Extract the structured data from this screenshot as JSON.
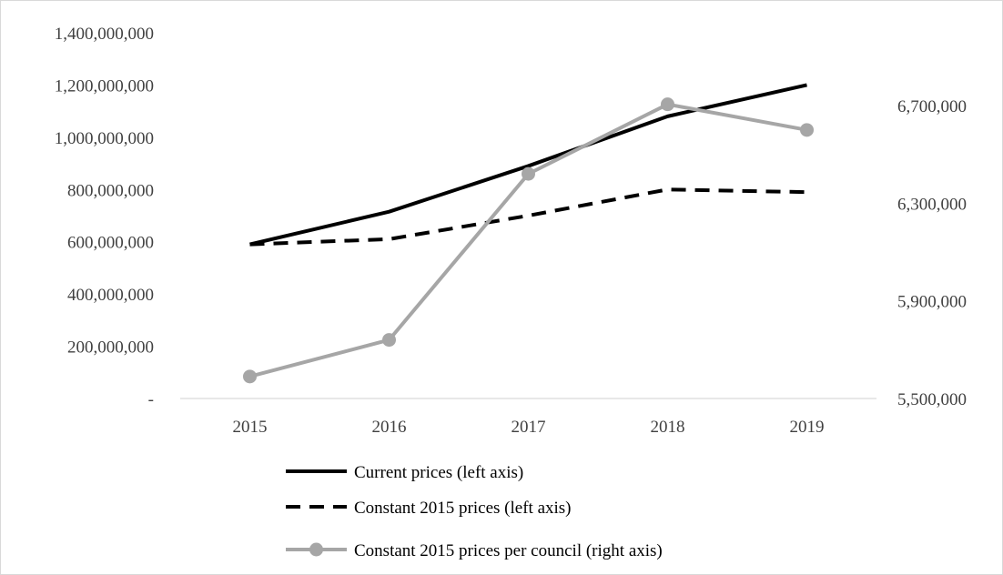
{
  "chart_data": {
    "type": "line",
    "title": "",
    "categories": [
      "2015",
      "2016",
      "2017",
      "2018",
      "2019"
    ],
    "left_axis": {
      "ylim": [
        0,
        1400000000
      ],
      "ticks": [
        0,
        200000000,
        400000000,
        600000000,
        800000000,
        1000000000,
        1200000000,
        1400000000
      ],
      "tick_labels": [
        "-",
        "200,000,000",
        "400,000,000",
        "600,000,000",
        "800,000,000",
        "1,000,000,000",
        "1,200,000,000",
        "1,400,000,000"
      ]
    },
    "right_axis": {
      "ylim": [
        5500000,
        6900000
      ],
      "ticks": [
        5500000,
        5900000,
        6300000,
        6700000
      ],
      "tick_labels": [
        "5,500,000",
        "5,900,000",
        "6,300,000",
        "6,700,000"
      ]
    },
    "grid": false,
    "legend_position": "bottom",
    "series": [
      {
        "name": "Current prices (left axis)",
        "axis": "left",
        "values": [
          590000000,
          715000000,
          890000000,
          1080000000,
          1200000000
        ],
        "color": "#000000",
        "style": "solid",
        "markers": false
      },
      {
        "name": "Constant 2015 prices (left axis)",
        "axis": "left",
        "values": [
          590000000,
          610000000,
          700000000,
          800000000,
          790000000
        ],
        "color": "#000000",
        "style": "dashed",
        "markers": false
      },
      {
        "name": "Constant 2015 prices per council (right axis)",
        "axis": "right",
        "values": [
          5590000,
          5740000,
          6420000,
          6705000,
          6600000
        ],
        "color": "#a6a6a6",
        "style": "solid",
        "markers": true
      }
    ]
  }
}
